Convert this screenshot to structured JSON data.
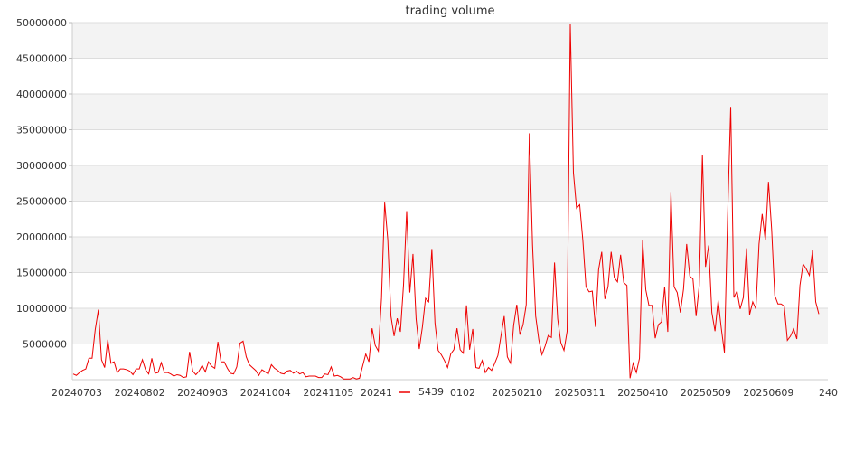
{
  "chart_data": {
    "type": "line",
    "title": "trading volume",
    "xlabel": "",
    "ylabel": "",
    "ylim": [
      0,
      50000000
    ],
    "yticks": [
      5000000,
      10000000,
      15000000,
      20000000,
      25000000,
      30000000,
      35000000,
      40000000,
      45000000,
      50000000
    ],
    "ytick_labels": [
      "5000000",
      "10000000",
      "15000000",
      "20000000",
      "25000000",
      "30000000",
      "35000000",
      "40000000",
      "45000000",
      "50000000"
    ],
    "xtick_labels": [
      "20240703",
      "20240802",
      "20240903",
      "20241004",
      "20241105",
      "20241",
      "0102",
      "20250210",
      "20250311",
      "20250410",
      "20250509",
      "20250609",
      "240"
    ],
    "grid": "horizontal bands",
    "legend_position": "bottom-center",
    "series": [
      {
        "name": "5439",
        "color": "#ee0000",
        "values": [
          800000,
          600000,
          1000000,
          1300000,
          1500000,
          3000000,
          3000000,
          7000000,
          9800000,
          2800000,
          1700000,
          5600000,
          2300000,
          2500000,
          1000000,
          1500000,
          1500000,
          1400000,
          1200000,
          700000,
          1500000,
          1500000,
          2800000,
          1400000,
          800000,
          3000000,
          900000,
          1000000,
          2400000,
          1000000,
          1000000,
          800000,
          500000,
          700000,
          600000,
          300000,
          400000,
          3900000,
          1200000,
          700000,
          1200000,
          2000000,
          1100000,
          2500000,
          1900000,
          1600000,
          5300000,
          2500000,
          2500000,
          1600000,
          900000,
          800000,
          1800000,
          5100000,
          5400000,
          3200000,
          2100000,
          1700000,
          1300000,
          600000,
          1400000,
          1100000,
          800000,
          2100000,
          1600000,
          1300000,
          900000,
          800000,
          1200000,
          1300000,
          900000,
          1200000,
          800000,
          1000000,
          400000,
          500000,
          500000,
          500000,
          300000,
          300000,
          800000,
          700000,
          1800000,
          500000,
          600000,
          400000,
          100000,
          100000,
          100000,
          300000,
          100000,
          200000,
          1900000,
          3600000,
          2500000,
          7200000,
          4800000,
          4000000,
          11400000,
          24800000,
          19600000,
          8900000,
          6100000,
          8600000,
          6700000,
          13300000,
          23600000,
          12200000,
          17600000,
          8500000,
          4300000,
          7400000,
          11400000,
          10900000,
          18300000,
          7900000,
          4100000,
          3500000,
          2700000,
          1700000,
          3600000,
          4200000,
          7200000,
          4200000,
          3700000,
          10400000,
          4200000,
          7100000,
          1700000,
          1600000,
          2700000,
          1000000,
          1700000,
          1300000,
          2300000,
          3400000,
          6200000,
          8900000,
          3200000,
          2300000,
          7600000,
          10500000,
          6300000,
          7700000,
          10500000,
          34500000,
          18900000,
          8900000,
          5600000,
          3500000,
          4700000,
          6200000,
          5900000,
          16400000,
          8500000,
          5200000,
          4100000,
          6800000,
          49800000,
          29000000,
          24000000,
          24500000,
          19500000,
          13000000,
          12300000,
          12400000,
          7400000,
          15400000,
          17900000,
          11300000,
          13000000,
          17900000,
          14300000,
          13700000,
          17500000,
          13600000,
          13200000,
          200000,
          2300000,
          1000000,
          3000000,
          19500000,
          12600000,
          10400000,
          10400000,
          5800000,
          7700000,
          8100000,
          13000000,
          6700000,
          26300000,
          13000000,
          12200000,
          9400000,
          12700000,
          19000000,
          14500000,
          14100000,
          8900000,
          13200000,
          31500000,
          15800000,
          18800000,
          9400000,
          6800000,
          11100000,
          7200000,
          3800000,
          22600000,
          38200000,
          11500000,
          12400000,
          9900000,
          11500000,
          18400000,
          9100000,
          10900000,
          9900000,
          19000000,
          23200000,
          19500000,
          27700000,
          21100000,
          11800000,
          10600000,
          10600000,
          10300000,
          5500000,
          6100000,
          7100000,
          5700000,
          13200000,
          16200000,
          15500000,
          14600000,
          18100000,
          10900000,
          9200000
        ]
      }
    ]
  }
}
